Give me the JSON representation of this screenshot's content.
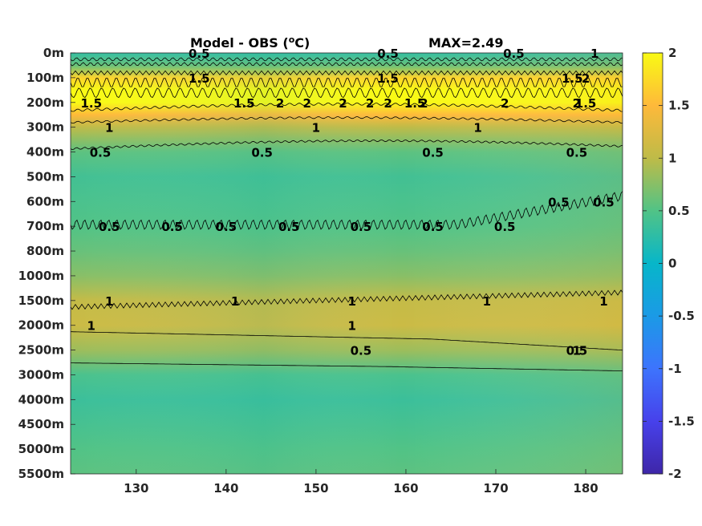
{
  "chart_data": {
    "type": "heatmap",
    "title": "Model - OBS (",
    "title_sup": "o",
    "title_unit": "C)",
    "annotation": "MAX=2.49",
    "x_ticks": [
      130,
      140,
      150,
      160,
      170,
      180
    ],
    "xlim": [
      122.7,
      184.1
    ],
    "y_ticks": [
      "0m",
      "100m",
      "200m",
      "300m",
      "400m",
      "500m",
      "600m",
      "700m",
      "800m",
      "1000m",
      "1500m",
      "2000m",
      "2500m",
      "3000m",
      "4000m",
      "4500m",
      "5000m",
      "5500m"
    ],
    "colorbar": {
      "ticks": [
        "2",
        "1.5",
        "1",
        "0.5",
        "0",
        "-0.5",
        "-1",
        "-1.5",
        "-2"
      ],
      "clim": [
        -2,
        2
      ],
      "colormap": "parula"
    },
    "depth_profile": [
      {
        "level": "0m",
        "value": 0.3
      },
      {
        "level": "50m",
        "value": 0.6
      },
      {
        "level": "100m",
        "value": 1.7
      },
      {
        "level": "150m",
        "value": 2.2
      },
      {
        "level": "200m",
        "value": 2.0
      },
      {
        "level": "250m",
        "value": 1.5
      },
      {
        "level": "300m",
        "value": 1.0
      },
      {
        "level": "400m",
        "value": 0.55
      },
      {
        "level": "500m",
        "value": 0.4
      },
      {
        "level": "600m",
        "value": 0.45
      },
      {
        "level": "700m",
        "value": 0.5
      },
      {
        "level": "800m",
        "value": 0.6
      },
      {
        "level": "1000m",
        "value": 0.75
      },
      {
        "level": "1500m",
        "value": 1.05
      },
      {
        "level": "2000m",
        "value": 1.1
      },
      {
        "level": "2500m",
        "value": 0.85
      },
      {
        "level": "3000m",
        "value": 0.45
      },
      {
        "level": "4000m",
        "value": 0.35
      },
      {
        "level": "5000m",
        "value": 0.5
      },
      {
        "level": "5500m",
        "value": 0.55
      }
    ],
    "contour_labels": [
      {
        "text": "0.5",
        "x": 137,
        "level": "0m"
      },
      {
        "text": "1.5",
        "x": 137,
        "level": "100m"
      },
      {
        "text": "0.5",
        "x": 158,
        "level": "0m"
      },
      {
        "text": "1.5",
        "x": 158,
        "level": "100m"
      },
      {
        "text": "0.5",
        "x": 172,
        "level": "0m"
      },
      {
        "text": "1",
        "x": 181,
        "level": "0m"
      },
      {
        "text": "1.5",
        "x": 178.5,
        "level": "100m"
      },
      {
        "text": "2",
        "x": 180,
        "level": "100m"
      },
      {
        "text": "2",
        "x": 146,
        "level": "200m"
      },
      {
        "text": "2",
        "x": 149,
        "level": "200m"
      },
      {
        "text": "2",
        "x": 153,
        "level": "200m"
      },
      {
        "text": "2",
        "x": 156,
        "level": "200m"
      },
      {
        "text": "2",
        "x": 158,
        "level": "200m"
      },
      {
        "text": "2",
        "x": 162,
        "level": "200m"
      },
      {
        "text": "2",
        "x": 171,
        "level": "200m"
      },
      {
        "text": "2",
        "x": 179,
        "level": "200m"
      },
      {
        "text": "1.5",
        "x": 125,
        "level": "200m"
      },
      {
        "text": "1.5",
        "x": 142,
        "level": "200m"
      },
      {
        "text": "1.5",
        "x": 161,
        "level": "200m"
      },
      {
        "text": "1.5",
        "x": 180,
        "level": "200m"
      },
      {
        "text": "1",
        "x": 127,
        "level": "300m"
      },
      {
        "text": "1",
        "x": 150,
        "level": "300m"
      },
      {
        "text": "1",
        "x": 168,
        "level": "300m"
      },
      {
        "text": "0.5",
        "x": 126,
        "level": "400m"
      },
      {
        "text": "0.5",
        "x": 144,
        "level": "400m"
      },
      {
        "text": "0.5",
        "x": 163,
        "level": "400m"
      },
      {
        "text": "0.5",
        "x": 179,
        "level": "400m"
      },
      {
        "text": "0.5",
        "x": 127,
        "level": "700m"
      },
      {
        "text": "0.5",
        "x": 134,
        "level": "700m"
      },
      {
        "text": "0.5",
        "x": 140,
        "level": "700m"
      },
      {
        "text": "0.5",
        "x": 147,
        "level": "700m"
      },
      {
        "text": "0.5",
        "x": 155,
        "level": "700m"
      },
      {
        "text": "0.5",
        "x": 163,
        "level": "700m"
      },
      {
        "text": "0.5",
        "x": 171,
        "level": "700m"
      },
      {
        "text": "0.5",
        "x": 177,
        "level": "600m"
      },
      {
        "text": "0.5",
        "x": 182,
        "level": "600m"
      },
      {
        "text": "1",
        "x": 127,
        "level": "1500m"
      },
      {
        "text": "1",
        "x": 141,
        "level": "1500m"
      },
      {
        "text": "1",
        "x": 154,
        "level": "1500m"
      },
      {
        "text": "1",
        "x": 169,
        "level": "1500m"
      },
      {
        "text": "1",
        "x": 182,
        "level": "1500m"
      },
      {
        "text": "1",
        "x": 125,
        "level": "2000m"
      },
      {
        "text": "1",
        "x": 154,
        "level": "2000m"
      },
      {
        "text": "1",
        "x": 179,
        "level": "2500m"
      },
      {
        "text": "0.5",
        "x": 155,
        "level": "2500m"
      },
      {
        "text": "0.5",
        "x": 179,
        "level": "2500m"
      }
    ]
  }
}
